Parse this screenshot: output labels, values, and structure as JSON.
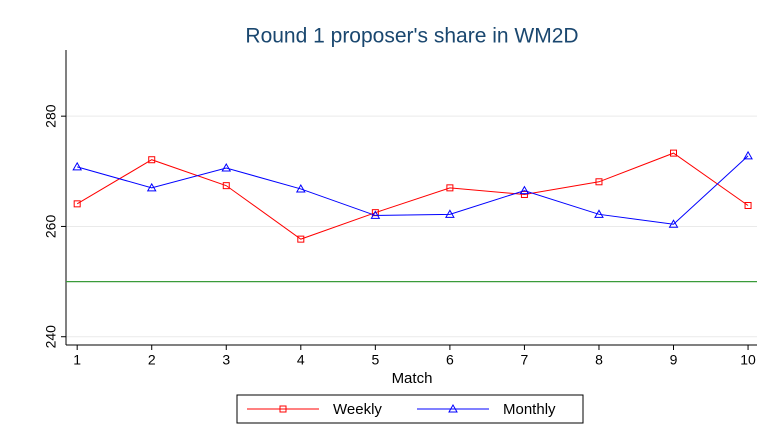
{
  "chart_data": {
    "type": "line",
    "title": "Round 1 proposer's share in WM2D",
    "xlabel": "Match",
    "x": [
      1,
      2,
      3,
      4,
      5,
      6,
      7,
      8,
      9,
      10
    ],
    "series": [
      {
        "name": "Weekly",
        "color": "#ff0000",
        "marker": "square",
        "values": [
          264.1,
          272.1,
          267.4,
          257.7,
          262.5,
          267.0,
          265.8,
          268.1,
          273.3,
          263.8
        ]
      },
      {
        "name": "Monthly",
        "color": "#0000ff",
        "marker": "triangle",
        "values": [
          270.8,
          267.0,
          270.6,
          266.8,
          262.0,
          262.2,
          266.5,
          262.2,
          260.4,
          272.8
        ]
      }
    ],
    "reference_line": {
      "value": 250,
      "color": "#3a9b3a"
    },
    "xlim": [
      0.85,
      10.12
    ],
    "xticks": [
      1,
      2,
      3,
      4,
      5,
      6,
      7,
      8,
      9,
      10
    ],
    "ylim": [
      238.5,
      292
    ],
    "yticks": [
      240,
      260,
      280
    ],
    "grid": true,
    "legend": "bottom"
  }
}
